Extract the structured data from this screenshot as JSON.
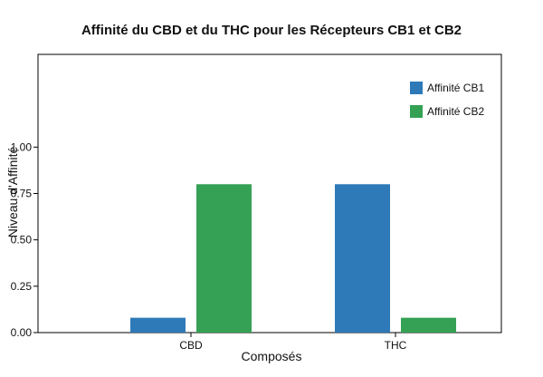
{
  "chart_data": {
    "type": "bar",
    "title": "Affinité du CBD et du THC pour les Récepteurs CB1 et CB2",
    "xlabel": "Composés",
    "ylabel": "Niveau d'Affinité",
    "categories": [
      "CBD",
      "THC"
    ],
    "series": [
      {
        "name": "Affinité CB1",
        "color": "#2e7ab8",
        "values": [
          0.08,
          0.8
        ]
      },
      {
        "name": "Affinité CB2",
        "color": "#34a155",
        "values": [
          0.8,
          0.08
        ]
      }
    ],
    "ylim": [
      0,
      1.5
    ],
    "yticks": [
      "0.00",
      "0.25",
      "0.50",
      "0.75",
      "1.00"
    ],
    "grid": false,
    "legend": "top-right"
  }
}
